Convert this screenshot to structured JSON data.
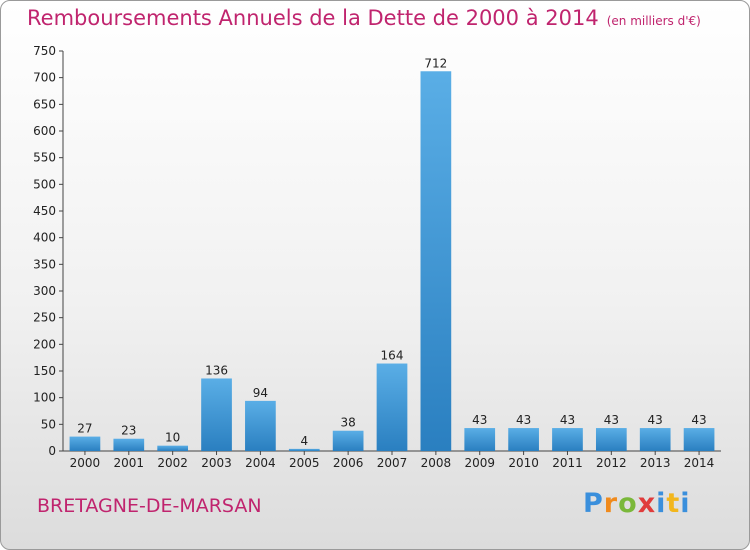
{
  "header": {
    "title": "Remboursements Annuels de la Dette de 2000 à 2014",
    "unit": "(en milliers d'€)"
  },
  "footer": {
    "commune": "BRETAGNE-DE-MARSAN",
    "logo": "Proxiti"
  },
  "colors": {
    "title": "#c0246e",
    "bar_top": "#5aaee6",
    "bar_bottom": "#2a7fc0"
  },
  "chart_data": {
    "type": "bar",
    "title": "Remboursements Annuels de la Dette de 2000 à 2014",
    "subtitle": "(en milliers d'€)",
    "categories": [
      "2000",
      "2001",
      "2002",
      "2003",
      "2004",
      "2005",
      "2006",
      "2007",
      "2008",
      "2009",
      "2010",
      "2011",
      "2012",
      "2013",
      "2014"
    ],
    "values": [
      27,
      23,
      10,
      136,
      94,
      4,
      38,
      164,
      712,
      43,
      43,
      43,
      43,
      43,
      43
    ],
    "ylim": [
      0,
      750
    ],
    "yticks": [
      0,
      50,
      100,
      150,
      200,
      250,
      300,
      350,
      400,
      450,
      500,
      550,
      600,
      650,
      700,
      750
    ],
    "grid": false,
    "legend": "none"
  }
}
